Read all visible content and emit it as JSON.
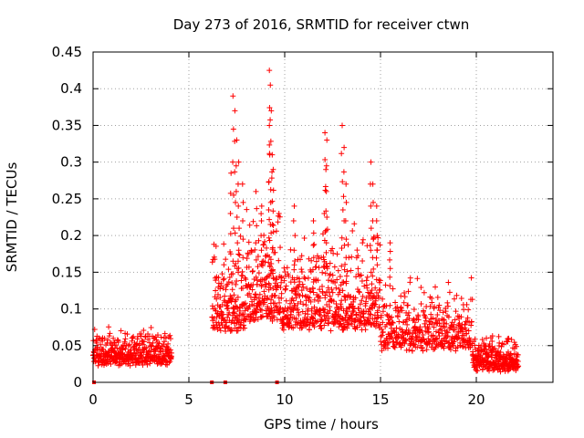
{
  "chart_data": {
    "type": "scatter",
    "title": "Day 273 of 2016, SRMTID for receiver ctwn",
    "xlabel": "GPS time / hours",
    "ylabel": "SRMTID / TECUs",
    "xlim": [
      0,
      24
    ],
    "ylim": [
      0,
      0.45
    ],
    "x_ticks": [
      0,
      5,
      10,
      15,
      20
    ],
    "x_tick_labels": [
      "0",
      "5",
      "10",
      "15",
      "20"
    ],
    "y_ticks": [
      0,
      0.05,
      0.1,
      0.15,
      0.2,
      0.25,
      0.3,
      0.35,
      0.4,
      0.45
    ],
    "y_tick_labels": [
      "0",
      "0.05",
      "0.1",
      "0.15",
      "0.2",
      "0.25",
      "0.3",
      "0.35",
      "0.4",
      "0.45"
    ],
    "grid": true,
    "marker": "+",
    "color": "#ff0000",
    "series": [
      {
        "name": "SRMTID",
        "segments": [
          {
            "x_start": 0.0,
            "x_end": 4.1,
            "y_low": 0.02,
            "y_high": 0.075,
            "density": 420
          },
          {
            "x_start": 6.2,
            "x_end": 8.0,
            "y_low": 0.05,
            "y_high": 0.2,
            "density": 180
          },
          {
            "x_start": 8.0,
            "x_end": 9.8,
            "y_low": 0.06,
            "y_high": 0.25,
            "density": 200
          },
          {
            "x_start": 9.8,
            "x_end": 15.0,
            "y_low": 0.05,
            "y_high": 0.22,
            "density": 520
          },
          {
            "x_start": 15.0,
            "x_end": 19.8,
            "y_low": 0.03,
            "y_high": 0.15,
            "density": 420
          },
          {
            "x_start": 19.8,
            "x_end": 22.2,
            "y_low": 0.01,
            "y_high": 0.07,
            "density": 280
          }
        ],
        "spikes": [
          {
            "x": 7.3,
            "y": 0.39
          },
          {
            "x": 7.4,
            "y": 0.37
          },
          {
            "x": 7.5,
            "y": 0.33
          },
          {
            "x": 7.2,
            "y": 0.285
          },
          {
            "x": 7.6,
            "y": 0.3
          },
          {
            "x": 7.8,
            "y": 0.27
          },
          {
            "x": 8.5,
            "y": 0.26
          },
          {
            "x": 8.8,
            "y": 0.24
          },
          {
            "x": 9.2,
            "y": 0.425
          },
          {
            "x": 9.25,
            "y": 0.405
          },
          {
            "x": 9.3,
            "y": 0.37
          },
          {
            "x": 9.2,
            "y": 0.35
          },
          {
            "x": 9.35,
            "y": 0.31
          },
          {
            "x": 9.4,
            "y": 0.29
          },
          {
            "x": 12.1,
            "y": 0.34
          },
          {
            "x": 12.2,
            "y": 0.33
          },
          {
            "x": 12.15,
            "y": 0.29
          },
          {
            "x": 13.0,
            "y": 0.35
          },
          {
            "x": 13.1,
            "y": 0.32
          },
          {
            "x": 13.2,
            "y": 0.27
          },
          {
            "x": 14.5,
            "y": 0.3
          },
          {
            "x": 14.6,
            "y": 0.27
          },
          {
            "x": 14.8,
            "y": 0.24
          },
          {
            "x": 10.5,
            "y": 0.24
          },
          {
            "x": 11.5,
            "y": 0.22
          },
          {
            "x": 15.5,
            "y": 0.19
          }
        ],
        "baseline_points": [
          {
            "x": 0.05,
            "y": 0.0
          },
          {
            "x": 6.2,
            "y": 0.0
          },
          {
            "x": 6.9,
            "y": 0.0
          },
          {
            "x": 9.6,
            "y": 0.0
          }
        ]
      }
    ]
  }
}
